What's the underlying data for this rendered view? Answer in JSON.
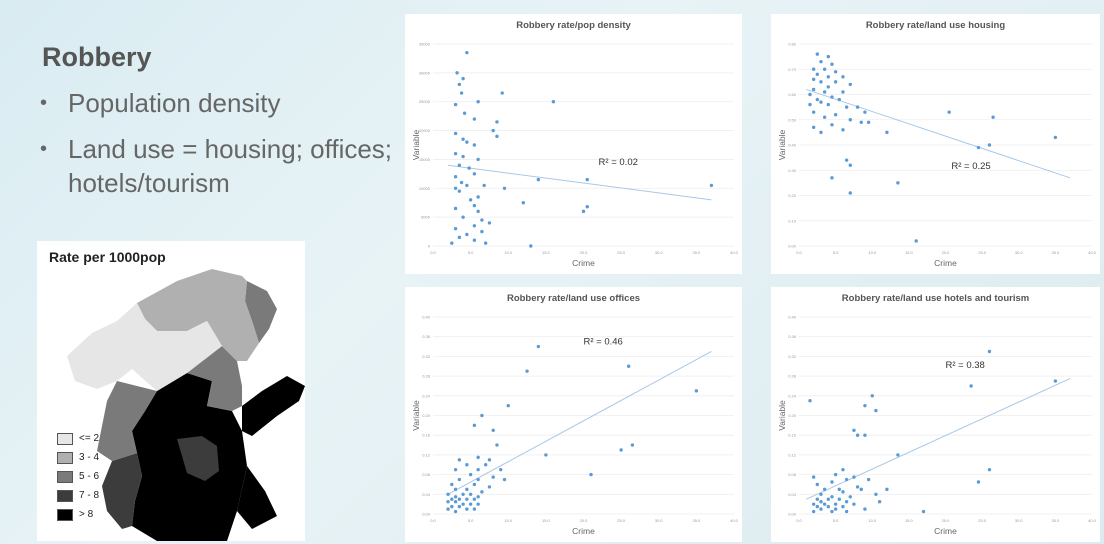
{
  "slide": {
    "title": "Robbery",
    "bullets": [
      "Population density",
      "Land use = housing; offices; hotels/tourism"
    ]
  },
  "map": {
    "title": "Rate per 1000pop",
    "legend": [
      {
        "label": "<= 2",
        "color": "#e6e6e6"
      },
      {
        "label": "3 - 4",
        "color": "#b0b0b0"
      },
      {
        "label": "5 - 6",
        "color": "#7a7a7a"
      },
      {
        "label": "7 - 8",
        "color": "#3c3c3c"
      },
      {
        "label": "> 8",
        "color": "#000000"
      }
    ]
  },
  "colors": {
    "point": "#5b9bd5",
    "trend": "#a9c8e8"
  },
  "chart_data": [
    {
      "type": "scatter",
      "title": "Robbery rate/pop density",
      "xlabel": "Crime",
      "ylabel": "Variable",
      "annotation": "R² = 0.02",
      "xlim": [
        0,
        40
      ],
      "ylim": [
        0,
        35000
      ],
      "xticks": [
        "0.0",
        "5.0",
        "10.0",
        "15.0",
        "20.0",
        "25.0",
        "30.0",
        "35.0",
        "40.0"
      ],
      "yticks": [
        "0",
        "5000",
        "10000",
        "15000",
        "20000",
        "25000",
        "30000",
        "35000"
      ],
      "grid": true,
      "trend": [
        [
          2,
          14000
        ],
        [
          37,
          8000
        ]
      ],
      "points": [
        [
          4.5,
          33500
        ],
        [
          3.2,
          30000
        ],
        [
          4,
          29000
        ],
        [
          3.5,
          28000
        ],
        [
          3.8,
          26500
        ],
        [
          6,
          25000
        ],
        [
          3,
          24500
        ],
        [
          4.2,
          23000
        ],
        [
          5.5,
          22000
        ],
        [
          8.5,
          21500
        ],
        [
          9.2,
          26500
        ],
        [
          16,
          25000
        ],
        [
          8,
          20000
        ],
        [
          8.5,
          19000
        ],
        [
          3,
          19500
        ],
        [
          4,
          18500
        ],
        [
          4.5,
          18000
        ],
        [
          5.5,
          17500
        ],
        [
          3,
          16000
        ],
        [
          4,
          15500
        ],
        [
          6,
          15000
        ],
        [
          3.5,
          14000
        ],
        [
          4.8,
          13500
        ],
        [
          3,
          12000
        ],
        [
          5.5,
          12500
        ],
        [
          3.8,
          11000
        ],
        [
          4.5,
          10500
        ],
        [
          3,
          10000
        ],
        [
          6.8,
          10500
        ],
        [
          9.5,
          10000
        ],
        [
          12,
          7500
        ],
        [
          14,
          11500
        ],
        [
          20.5,
          11500
        ],
        [
          3.5,
          9500
        ],
        [
          6,
          8500
        ],
        [
          5,
          8000
        ],
        [
          5.5,
          7000
        ],
        [
          3,
          6500
        ],
        [
          6,
          6000
        ],
        [
          4,
          5000
        ],
        [
          6.5,
          4500
        ],
        [
          7.5,
          4000
        ],
        [
          5.5,
          3500
        ],
        [
          3,
          3000
        ],
        [
          6.5,
          2500
        ],
        [
          4.5,
          2000
        ],
        [
          3.5,
          1500
        ],
        [
          5.5,
          1000
        ],
        [
          7,
          500
        ],
        [
          2.5,
          500
        ],
        [
          20,
          6000
        ],
        [
          20.5,
          6800
        ],
        [
          13,
          0
        ],
        [
          37,
          10500
        ]
      ]
    },
    {
      "type": "scatter",
      "title": "Robbery rate/land use housing",
      "xlabel": "Crime",
      "ylabel": "Variable",
      "annotation": "R² = 0.25",
      "xlim": [
        0,
        40
      ],
      "ylim": [
        0,
        0.8
      ],
      "xticks": [
        "0.0",
        "5.0",
        "10.0",
        "15.0",
        "20.0",
        "25.0",
        "30.0",
        "35.0",
        "40.0"
      ],
      "yticks": [
        "0.00",
        "0.10",
        "0.20",
        "0.30",
        "0.40",
        "0.50",
        "0.60",
        "0.70",
        "0.80"
      ],
      "grid": true,
      "trend": [
        [
          1,
          0.62
        ],
        [
          37,
          0.27
        ]
      ],
      "points": [
        [
          2.5,
          0.76
        ],
        [
          4,
          0.75
        ],
        [
          3,
          0.73
        ],
        [
          4.5,
          0.72
        ],
        [
          2,
          0.7
        ],
        [
          3.5,
          0.7
        ],
        [
          5,
          0.69
        ],
        [
          2.5,
          0.68
        ],
        [
          4,
          0.67
        ],
        [
          6,
          0.67
        ],
        [
          2,
          0.66
        ],
        [
          3,
          0.65
        ],
        [
          5,
          0.65
        ],
        [
          7,
          0.64
        ],
        [
          4,
          0.63
        ],
        [
          2,
          0.62
        ],
        [
          3.5,
          0.61
        ],
        [
          6,
          0.61
        ],
        [
          1.5,
          0.6
        ],
        [
          4.5,
          0.59
        ],
        [
          2.5,
          0.58
        ],
        [
          5.5,
          0.58
        ],
        [
          3,
          0.57
        ],
        [
          1.5,
          0.56
        ],
        [
          4,
          0.56
        ],
        [
          6.5,
          0.55
        ],
        [
          8,
          0.55
        ],
        [
          9,
          0.53
        ],
        [
          2,
          0.53
        ],
        [
          5,
          0.52
        ],
        [
          3.5,
          0.51
        ],
        [
          7,
          0.5
        ],
        [
          8.5,
          0.49
        ],
        [
          9.5,
          0.49
        ],
        [
          4.5,
          0.48
        ],
        [
          2,
          0.47
        ],
        [
          6,
          0.46
        ],
        [
          3,
          0.45
        ],
        [
          12,
          0.45
        ],
        [
          20.5,
          0.53
        ],
        [
          26.5,
          0.51
        ],
        [
          24.5,
          0.39
        ],
        [
          26,
          0.4
        ],
        [
          6.5,
          0.34
        ],
        [
          7,
          0.32
        ],
        [
          13.5,
          0.25
        ],
        [
          4.5,
          0.27
        ],
        [
          7,
          0.21
        ],
        [
          16,
          0.02
        ],
        [
          35,
          0.43
        ]
      ]
    },
    {
      "type": "scatter",
      "title": "Robbery rate/land use offices",
      "xlabel": "Crime",
      "ylabel": "Variable",
      "annotation": "R² = 0.46",
      "xlim": [
        0,
        40
      ],
      "ylim": [
        0,
        0.4
      ],
      "xticks": [
        "0.0",
        "5.0",
        "10.0",
        "15.0",
        "20.0",
        "25.0",
        "30.0",
        "35.0",
        "40.0"
      ],
      "yticks": [
        "0.00",
        "0.04",
        "0.08",
        "0.12",
        "0.16",
        "0.20",
        "0.24",
        "0.28",
        "0.32",
        "0.36",
        "0.40"
      ],
      "grid": true,
      "trend": [
        [
          2,
          0.04
        ],
        [
          37,
          0.33
        ]
      ],
      "points": [
        [
          14,
          0.34
        ],
        [
          12.5,
          0.29
        ],
        [
          26,
          0.3
        ],
        [
          35,
          0.25
        ],
        [
          10,
          0.22
        ],
        [
          6.5,
          0.2
        ],
        [
          5.5,
          0.18
        ],
        [
          8,
          0.17
        ],
        [
          15,
          0.12
        ],
        [
          25,
          0.13
        ],
        [
          26.5,
          0.14
        ],
        [
          3.5,
          0.11
        ],
        [
          6,
          0.115
        ],
        [
          7.5,
          0.11
        ],
        [
          8.5,
          0.14
        ],
        [
          4.5,
          0.1
        ],
        [
          7,
          0.1
        ],
        [
          3,
          0.09
        ],
        [
          6,
          0.09
        ],
        [
          9,
          0.09
        ],
        [
          5,
          0.08
        ],
        [
          8,
          0.075
        ],
        [
          3.5,
          0.07
        ],
        [
          6,
          0.07
        ],
        [
          9.5,
          0.07
        ],
        [
          2.5,
          0.06
        ],
        [
          5.5,
          0.06
        ],
        [
          7.5,
          0.055
        ],
        [
          3,
          0.05
        ],
        [
          4.5,
          0.05
        ],
        [
          6.5,
          0.045
        ],
        [
          2,
          0.04
        ],
        [
          4,
          0.04
        ],
        [
          5,
          0.04
        ],
        [
          3,
          0.035
        ],
        [
          6,
          0.035
        ],
        [
          2.5,
          0.03
        ],
        [
          3.5,
          0.03
        ],
        [
          4.5,
          0.03
        ],
        [
          5.5,
          0.03
        ],
        [
          2,
          0.025
        ],
        [
          3,
          0.025
        ],
        [
          4,
          0.02
        ],
        [
          5,
          0.02
        ],
        [
          6,
          0.02
        ],
        [
          2.5,
          0.015
        ],
        [
          3.5,
          0.015
        ],
        [
          4.5,
          0.01
        ],
        [
          3,
          0.005
        ],
        [
          5.5,
          0.01
        ],
        [
          21,
          0.08
        ],
        [
          2,
          0.01
        ]
      ]
    },
    {
      "type": "scatter",
      "title": "Robbery rate/land use hotels and tourism",
      "xlabel": "Crime",
      "ylabel": "Variable",
      "annotation": "R² = 0.38",
      "xlim": [
        0,
        40
      ],
      "ylim": [
        0,
        0.4
      ],
      "xticks": [
        "0.0",
        "5.0",
        "10.0",
        "15.0",
        "20.0",
        "25.0",
        "30.0",
        "35.0",
        "40.0"
      ],
      "yticks": [
        "0.00",
        "0.04",
        "0.08",
        "0.12",
        "0.16",
        "0.20",
        "0.24",
        "0.28",
        "0.32",
        "0.36",
        "0.40"
      ],
      "grid": true,
      "trend": [
        [
          1,
          0.03
        ],
        [
          37,
          0.275
        ]
      ],
      "points": [
        [
          26,
          0.33
        ],
        [
          23.5,
          0.26
        ],
        [
          35,
          0.27
        ],
        [
          10,
          0.24
        ],
        [
          9,
          0.22
        ],
        [
          10.5,
          0.21
        ],
        [
          1.5,
          0.23
        ],
        [
          9,
          0.16
        ],
        [
          8,
          0.16
        ],
        [
          13.5,
          0.12
        ],
        [
          26,
          0.09
        ],
        [
          24.5,
          0.065
        ],
        [
          7.5,
          0.17
        ],
        [
          9.5,
          0.07
        ],
        [
          8,
          0.055
        ],
        [
          6,
          0.09
        ],
        [
          5,
          0.08
        ],
        [
          7.5,
          0.075
        ],
        [
          6.5,
          0.07
        ],
        [
          2,
          0.075
        ],
        [
          4.5,
          0.065
        ],
        [
          2.5,
          0.06
        ],
        [
          3.5,
          0.05
        ],
        [
          5.5,
          0.05
        ],
        [
          8.5,
          0.05
        ],
        [
          12,
          0.05
        ],
        [
          6,
          0.045
        ],
        [
          3,
          0.04
        ],
        [
          4.5,
          0.035
        ],
        [
          7,
          0.035
        ],
        [
          2.5,
          0.03
        ],
        [
          4,
          0.03
        ],
        [
          5.5,
          0.03
        ],
        [
          10.5,
          0.04
        ],
        [
          11,
          0.025
        ],
        [
          3,
          0.025
        ],
        [
          6.5,
          0.025
        ],
        [
          2,
          0.02
        ],
        [
          3.5,
          0.02
        ],
        [
          5,
          0.02
        ],
        [
          7.5,
          0.02
        ],
        [
          2.5,
          0.015
        ],
        [
          4,
          0.015
        ],
        [
          6,
          0.015
        ],
        [
          3,
          0.01
        ],
        [
          5,
          0.01
        ],
        [
          9,
          0.01
        ],
        [
          2,
          0.005
        ],
        [
          4.5,
          0.005
        ],
        [
          17,
          0.005
        ],
        [
          6.5,
          0.005
        ]
      ]
    }
  ]
}
